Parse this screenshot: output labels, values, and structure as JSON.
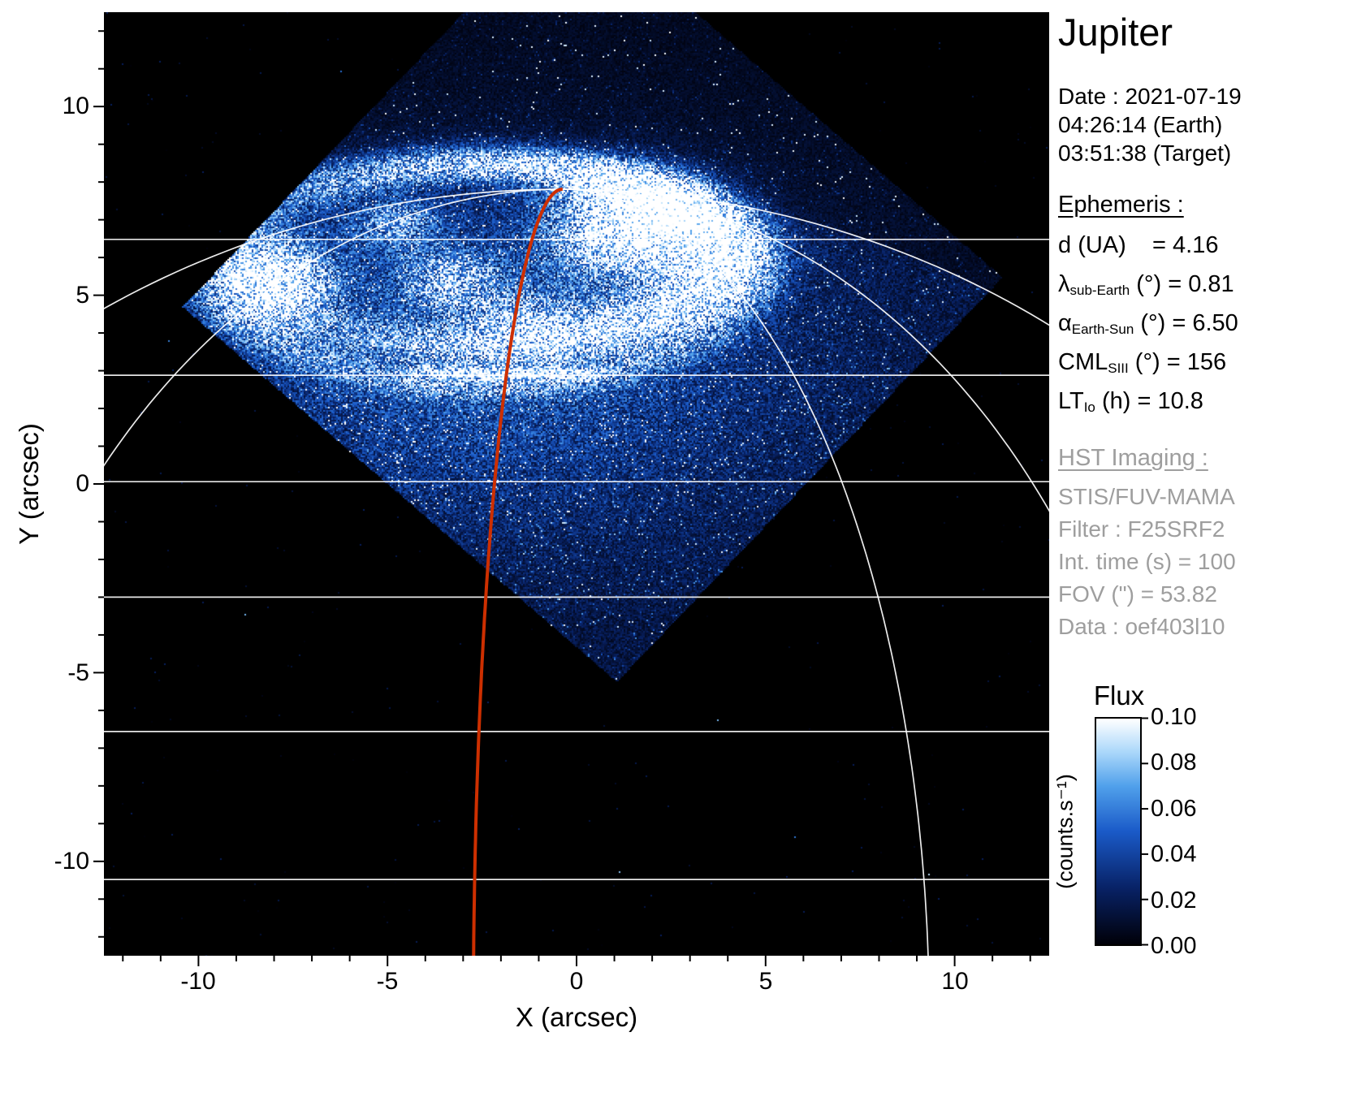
{
  "title": "Jupiter",
  "info": {
    "date": "Date : 2021-07-19",
    "time_earth": "04:26:14 (Earth)",
    "time_target": "03:51:38 (Target)"
  },
  "ephemeris": {
    "heading": "Ephemeris :",
    "rows": [
      {
        "main": "d",
        "sub": "",
        "rest": " (UA)    = 4.16"
      },
      {
        "main": "λ",
        "sub": "sub-Earth",
        "rest": " (°) = 0.81"
      },
      {
        "main": "α",
        "sub": "Earth-Sun",
        "rest": " (°) = 6.50"
      },
      {
        "main": "CML",
        "sub": "SIII",
        "rest": " (°) = 156"
      },
      {
        "main": "LT",
        "sub": "Io",
        "rest": " (h) = 10.8"
      }
    ]
  },
  "hst": {
    "heading": "HST Imaging :",
    "lines": [
      "STIS/FUV-MAMA",
      "Filter : F25SRF2",
      "Int. time (s) = 100",
      "FOV (\") = 53.82",
      "Data : oef403l10"
    ]
  },
  "axes": {
    "xlabel": "X (arcsec)",
    "ylabel": "Y (arcsec)",
    "x_tick_labels": [
      "-10",
      "-5",
      "0",
      "5",
      "10"
    ],
    "y_tick_labels": [
      "10",
      "5",
      "0",
      "-5",
      "-10"
    ]
  },
  "colorbar": {
    "title": "Flux",
    "unit": "(counts.s⁻¹)",
    "tick_labels": [
      "0.10",
      "0.08",
      "0.06",
      "0.04",
      "0.02",
      "0.00"
    ]
  },
  "chart_data": {
    "type": "heatmap",
    "title": "Jupiter",
    "subtitle": "HST STIS/FUV-MAMA image of Jupiter northern UV aurora",
    "xlabel": "X (arcsec)",
    "ylabel": "Y (arcsec)",
    "xlim": [
      -12.5,
      12.5
    ],
    "ylim": [
      -12.5,
      12.5
    ],
    "x_ticks": [
      -10,
      -5,
      0,
      5,
      10
    ],
    "y_ticks": [
      10,
      5,
      0,
      -5,
      -10
    ],
    "minor_tick_step": 1,
    "date": "2021-07-19",
    "time_earth": "04:26:14",
    "time_target": "03:51:38",
    "ephemeris": {
      "d_UA": 4.16,
      "lambda_subEarth_deg": 0.81,
      "alpha_EarthSun_deg": 6.5,
      "CML_SIII_deg": 156,
      "LT_Io_h": 10.8
    },
    "instrument": {
      "detector": "STIS/FUV-MAMA",
      "filter": "F25SRF2",
      "int_time_s": 100,
      "fov_arcsec": 53.82,
      "dataset": "oef403l10"
    },
    "colorbar": {
      "label": "Flux",
      "unit": "(counts.s⁻¹)",
      "min": 0.0,
      "max": 0.1,
      "ticks": [
        0.1,
        0.08,
        0.06,
        0.04,
        0.02,
        0.0
      ]
    },
    "colors": {
      "background": "#000000",
      "grid": "#ffffff",
      "cml_line": "#cd2f00",
      "text_gray": "#9e9e9e"
    },
    "colormap_stops": [
      [
        0.0,
        "#000008"
      ],
      [
        0.25,
        "#082266"
      ],
      [
        0.5,
        "#1a5ac8"
      ],
      [
        0.7,
        "#50a0eb"
      ],
      [
        0.85,
        "#aad7fa"
      ],
      [
        1.0,
        "#ffffff"
      ]
    ],
    "graticule": {
      "planet_center": [
        -0.37,
        -14.24
      ],
      "equatorial_radius": 23.5,
      "polar_radius": 22.05,
      "latitude_lines_y": [
        6.48,
        2.88,
        0.06,
        -3.0,
        -6.56,
        -10.48
      ],
      "meridians": [
        {
          "a": 23.5,
          "sides": [
            -1,
            1
          ]
        },
        {
          "a": 16.3,
          "sides": [
            -1,
            1
          ]
        },
        {
          "a": 9.7,
          "sides": [
            1
          ]
        }
      ],
      "cml": {
        "a": 2.36,
        "side": -1
      }
    },
    "image_model": {
      "fov_polygon": [
        [
          1.07,
          -5.25
        ],
        [
          -10.42,
          4.69
        ],
        [
          -0.21,
          15.4
        ],
        [
          11.27,
          5.47
        ]
      ],
      "base_level": 0.16,
      "off_disk_level": 0.07,
      "features": [
        {
          "type": "gauss",
          "cx": -2.2,
          "cy": 3.4,
          "sx": 5.5,
          "sy": 3.2,
          "amp": 0.33
        },
        {
          "type": "ring",
          "cx": -2.5,
          "cy": 6.05,
          "rx": 6.34,
          "ry": 2.41,
          "width": 0.2,
          "amp": 1.15,
          "mod_amp": 0.42,
          "mod_phase": 0.35
        },
        {
          "type": "ring",
          "cx": -2.5,
          "cy": 5.7,
          "rx": 7.2,
          "ry": 3.1,
          "width": 0.12,
          "amp": 0.3,
          "mod_amp": -0.5,
          "mod_phase": 1.57
        },
        {
          "type": "gauss",
          "cx": 1.55,
          "cy": 6.8,
          "sx": 1.35,
          "sy": 0.85,
          "amp": 1.3
        },
        {
          "type": "gauss",
          "cx": -8.05,
          "cy": 5.35,
          "sx": 1.0,
          "sy": 0.7,
          "amp": 1.15
        },
        {
          "type": "gauss",
          "cx": -3.3,
          "cy": 5.4,
          "sx": 0.9,
          "sy": 0.5,
          "amp": 0.5
        },
        {
          "type": "gauss",
          "cx": -1.3,
          "cy": 4.35,
          "sx": 1.2,
          "sy": 0.5,
          "amp": 0.45
        },
        {
          "type": "gauss",
          "cx": -4.8,
          "cy": 6.9,
          "sx": 0.8,
          "sy": 0.5,
          "amp": 0.45
        },
        {
          "type": "streak",
          "y": 2.93,
          "x0": -4.3,
          "x1": 0.8,
          "sy": 0.17,
          "amp": 0.55
        }
      ],
      "noise": {
        "mult_min": 0.35,
        "mult_range": 1.15,
        "hot_prob": 0.006,
        "boost_prob": 0.05,
        "boost": 2.5
      }
    }
  }
}
